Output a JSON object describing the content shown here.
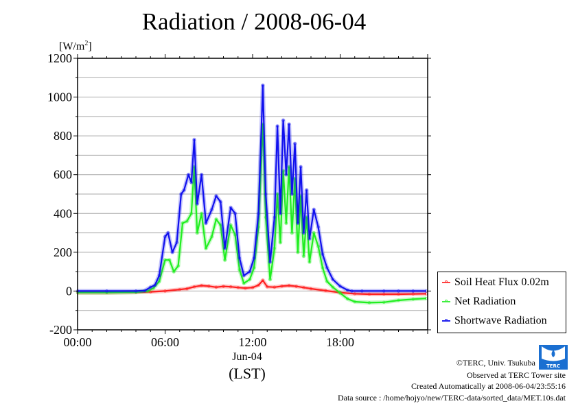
{
  "chart_data": {
    "type": "line",
    "title": "Radiation / 2008-06-04",
    "ylabel": "[W/m2]",
    "ylabel_base": "[W/m",
    "ylabel_sup": "2",
    "ylabel_close": "]",
    "xlabel": "(LST)",
    "x_sublabel": "Jun-04",
    "xlim": [
      0,
      24
    ],
    "ylim": [
      -200,
      1200
    ],
    "grid": true,
    "yticks": [
      -200,
      0,
      200,
      400,
      600,
      800,
      1000,
      1200
    ],
    "xticks": [
      {
        "hour": 0,
        "label": "00:00"
      },
      {
        "hour": 6,
        "label": "06:00"
      },
      {
        "hour": 12,
        "label": "12:00"
      },
      {
        "hour": 18,
        "label": "18:00"
      }
    ],
    "legend_position": "outside-bottom-right",
    "series": [
      {
        "name": "Soil Heat Flux 0.02m",
        "color": "#ff2020",
        "x": [
          0,
          2,
          4,
          5,
          6,
          7,
          7.5,
          8,
          8.5,
          9,
          9.5,
          10,
          10.5,
          11,
          11.5,
          12,
          12.4,
          12.7,
          13,
          13.5,
          14,
          14.5,
          15,
          15.5,
          16,
          17,
          18,
          19,
          20,
          21,
          22,
          23,
          23.9
        ],
        "y": [
          -8,
          -8,
          -6,
          -4,
          0,
          8,
          12,
          22,
          28,
          25,
          20,
          24,
          22,
          18,
          15,
          18,
          30,
          55,
          22,
          20,
          25,
          28,
          24,
          18,
          12,
          2,
          -8,
          -14,
          -16,
          -16,
          -16,
          -15,
          -14
        ]
      },
      {
        "name": "Net Radiation",
        "color": "#20ee20",
        "x": [
          0,
          2,
          4,
          4.8,
          5.2,
          5.6,
          6,
          6.3,
          6.6,
          6.9,
          7.2,
          7.5,
          7.8,
          8,
          8.2,
          8.5,
          8.8,
          9.2,
          9.5,
          9.8,
          10.1,
          10.5,
          10.8,
          11.1,
          11.4,
          11.8,
          12.1,
          12.4,
          12.7,
          12.9,
          13.2,
          13.5,
          13.7,
          13.9,
          14.1,
          14.3,
          14.5,
          14.7,
          14.9,
          15.1,
          15.3,
          15.5,
          15.7,
          15.9,
          16.2,
          16.5,
          16.8,
          17.1,
          17.5,
          18,
          18.5,
          19,
          20,
          21,
          22,
          23,
          23.9
        ],
        "y": [
          -8,
          -8,
          -6,
          0,
          15,
          50,
          160,
          160,
          100,
          130,
          350,
          360,
          400,
          640,
          300,
          400,
          220,
          280,
          370,
          340,
          160,
          340,
          290,
          110,
          40,
          60,
          120,
          330,
          860,
          380,
          60,
          220,
          500,
          250,
          620,
          350,
          640,
          300,
          580,
          200,
          490,
          180,
          380,
          150,
          300,
          230,
          120,
          50,
          20,
          -10,
          -40,
          -55,
          -60,
          -58,
          -48,
          -42,
          -38
        ]
      },
      {
        "name": "Shortwave Radiation",
        "color": "#1010ee",
        "x": [
          0,
          2,
          4,
          4.6,
          5,
          5.3,
          5.6,
          6,
          6.2,
          6.5,
          6.8,
          7.1,
          7.3,
          7.6,
          7.8,
          8,
          8.2,
          8.5,
          8.8,
          9.2,
          9.5,
          9.8,
          10.1,
          10.5,
          10.8,
          11.1,
          11.4,
          11.8,
          12.1,
          12.4,
          12.7,
          12.9,
          13.2,
          13.5,
          13.7,
          13.9,
          14.1,
          14.3,
          14.5,
          14.7,
          14.9,
          15.1,
          15.3,
          15.5,
          15.7,
          15.9,
          16.2,
          16.5,
          16.8,
          17.1,
          17.5,
          18,
          18.5,
          18.8,
          19.5,
          21,
          22,
          23,
          23.9
        ],
        "y": [
          0,
          0,
          0,
          2,
          20,
          30,
          80,
          280,
          300,
          200,
          250,
          500,
          520,
          600,
          560,
          780,
          450,
          600,
          350,
          420,
          490,
          460,
          220,
          430,
          400,
          170,
          80,
          100,
          170,
          400,
          1060,
          500,
          150,
          380,
          850,
          400,
          880,
          600,
          860,
          500,
          760,
          350,
          640,
          300,
          520,
          270,
          420,
          330,
          190,
          120,
          60,
          25,
          5,
          0,
          0,
          0,
          0,
          0,
          0
        ]
      }
    ]
  },
  "footer": {
    "copyright": "©TERC, Univ. Tsukuba",
    "observed": "Observed at TERC Tower site",
    "created": "Created Automatically at 2008-06-04/23:55:16",
    "source": "Data source : /home/hojyo/new/TERC-data/sorted_data/MET.10s.dat",
    "logo_text": "TERC"
  }
}
